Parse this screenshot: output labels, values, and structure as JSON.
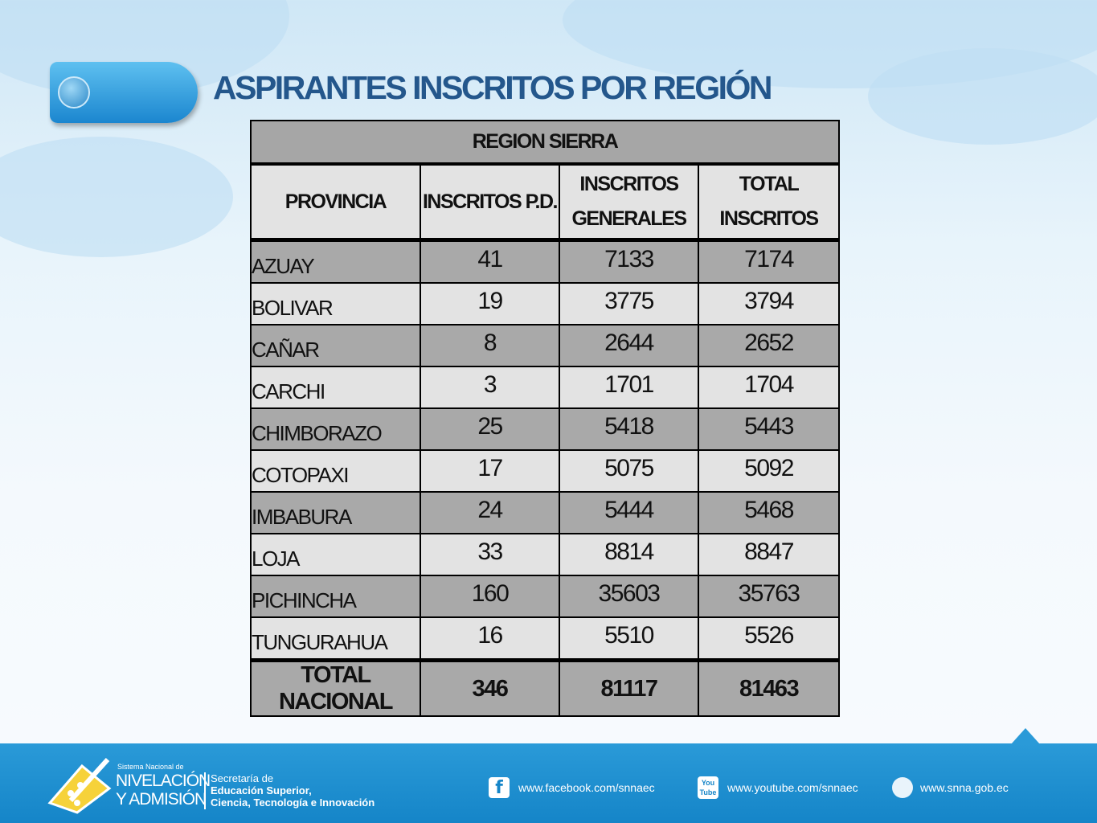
{
  "header": {
    "title": "ASPIRANTES INSCRITOS POR REGIÓN"
  },
  "table": {
    "caption": "REGION SIERRA",
    "columns": [
      "PROVINCIA",
      "INSCRITOS P.D.",
      "INSCRITOS GENERALES",
      "TOTAL INSCRITOS"
    ],
    "rows": [
      [
        "AZUAY",
        41,
        7133,
        7174
      ],
      [
        "BOLIVAR",
        19,
        3775,
        3794
      ],
      [
        "CAÑAR",
        8,
        2644,
        2652
      ],
      [
        "CARCHI",
        3,
        1701,
        1704
      ],
      [
        "CHIMBORAZO",
        25,
        5418,
        5443
      ],
      [
        "COTOPAXI",
        17,
        5075,
        5092
      ],
      [
        "IMBABURA",
        24,
        5444,
        5468
      ],
      [
        "LOJA",
        33,
        8814,
        8847
      ],
      [
        "PICHINCHA",
        160,
        35603,
        35763
      ],
      [
        "TUNGURAHUA",
        16,
        5510,
        5526
      ]
    ],
    "total": [
      "TOTAL NACIONAL",
      346,
      81117,
      81463
    ]
  },
  "footer": {
    "logo_small": "Sistema Nacional de",
    "logo_line1": "NIVELACIÓN",
    "logo_line2": "Y ADMISIÓN",
    "secretaria": [
      "Secretaría de",
      "Educación Superior,",
      "Ciencia, Tecnología e Innovación"
    ],
    "youtube_icon": [
      "You",
      "Tube"
    ],
    "links": [
      "www.facebook.com/snnaec",
      "www.youtube.com/snnaec",
      "www.snna.gob.ec"
    ]
  }
}
